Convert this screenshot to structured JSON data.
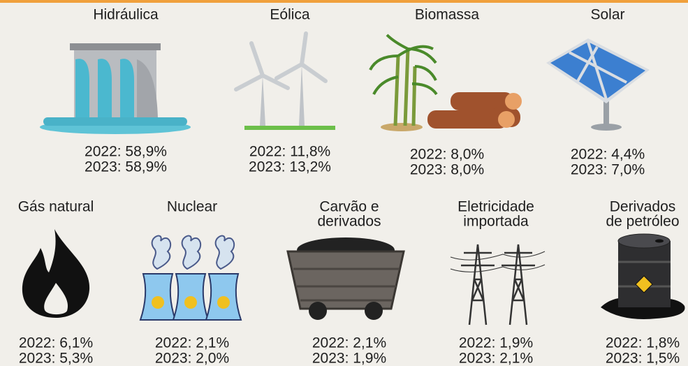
{
  "items": [
    {
      "label": [
        "Hidráulica"
      ],
      "stats": [
        "2022: 58,9%",
        "2023: 58,9%"
      ]
    },
    {
      "label": [
        "Eólica"
      ],
      "stats": [
        "2022: 11,8%",
        "2023: 13,2%"
      ]
    },
    {
      "label": [
        "Biomassa"
      ],
      "stats": [
        "2022: 8,0%",
        "2023: 8,0%"
      ]
    },
    {
      "label": [
        "Solar"
      ],
      "stats": [
        "2022: 4,4%",
        "2023: 7,0%"
      ]
    },
    {
      "label": [
        "Gás natural"
      ],
      "stats": [
        "2022: 6,1%",
        "2023: 5,3%"
      ]
    },
    {
      "label": [
        "Nuclear"
      ],
      "stats": [
        "2022: 2,1%",
        "2023: 2,0%"
      ]
    },
    {
      "label": [
        "Carvão e",
        "derivados"
      ],
      "stats": [
        "2022: 2,1%",
        "2023: 1,9%"
      ]
    },
    {
      "label": [
        "Eletricidade",
        "importada"
      ],
      "stats": [
        "2022: 1,9%",
        "2023: 2,1%"
      ]
    },
    {
      "label": [
        "Derivados",
        "de petróleo"
      ],
      "stats": [
        "2022: 1,8%",
        "2023: 1,5%"
      ]
    }
  ]
}
